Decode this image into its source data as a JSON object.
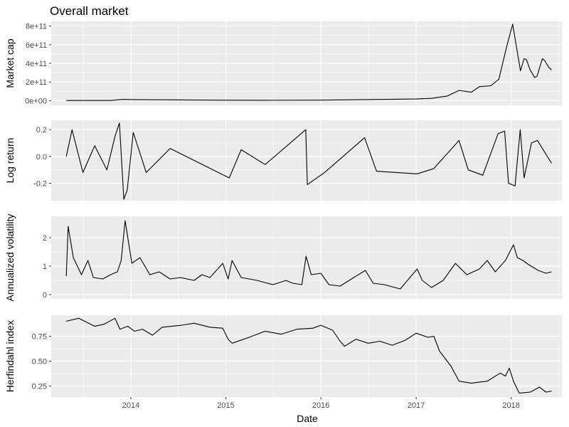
{
  "chart_data": {
    "type": "line",
    "title": "Overall market",
    "xlabel": "Date",
    "x_ticks": [
      "2014",
      "2015",
      "2016",
      "2017",
      "2018"
    ],
    "x_range": [
      "2013-03-01",
      "2018-07-15"
    ],
    "grid": true,
    "panels": [
      {
        "ylabel": "Market cap",
        "ylim": [
          -50000000000.0,
          850000000000.0
        ],
        "y_ticks": [
          0,
          200000000000.0,
          400000000000.0,
          600000000000.0,
          800000000000.0
        ],
        "y_tick_labels": [
          "0e+00",
          "2e+11",
          "4e+11",
          "6e+11",
          "8e+11"
        ],
        "series": {
          "x": [
            "2013-04-28",
            "2013-08-01",
            "2013-10-15",
            "2013-12-01",
            "2014-02-01",
            "2014-06-01",
            "2015-01-01",
            "2015-06-01",
            "2016-01-01",
            "2016-06-01",
            "2017-01-01",
            "2017-03-01",
            "2017-05-01",
            "2017-06-15",
            "2017-08-01",
            "2017-09-01",
            "2017-10-15",
            "2017-11-15",
            "2017-12-15",
            "2018-01-07",
            "2018-01-20",
            "2018-02-06",
            "2018-02-20",
            "2018-03-01",
            "2018-03-15",
            "2018-04-01",
            "2018-04-10",
            "2018-05-01",
            "2018-05-10",
            "2018-05-25",
            "2018-06-05"
          ],
          "y": [
            1600000000.0,
            1500000000.0,
            2000000000.0,
            13000000000.0,
            10000000000.0,
            9000000000.0,
            5000000000.0,
            4000000000.0,
            6000000000.0,
            10000000000.0,
            18000000000.0,
            25000000000.0,
            50000000000.0,
            110000000000.0,
            90000000000.0,
            150000000000.0,
            160000000000.0,
            230000000000.0,
            580000000000.0,
            820000000000.0,
            600000000000.0,
            320000000000.0,
            450000000000.0,
            440000000000.0,
            330000000000.0,
            250000000000.0,
            260000000000.0,
            450000000000.0,
            430000000000.0,
            360000000000.0,
            330000000000.0
          ]
        }
      },
      {
        "ylabel": "Log return",
        "ylim": [
          -0.33,
          0.27
        ],
        "y_ticks": [
          -0.2,
          0.0,
          0.2
        ],
        "y_tick_labels": [
          "-0.2",
          "0.0",
          "0.2"
        ],
        "series": {
          "x": [
            "2013-04-28",
            "2013-05-20",
            "2013-07-01",
            "2013-08-15",
            "2013-10-01",
            "2013-11-01",
            "2013-11-18",
            "2013-12-05",
            "2013-12-18",
            "2014-01-10",
            "2014-03-01",
            "2014-06-01",
            "2015-01-14",
            "2015-03-01",
            "2015-06-01",
            "2015-11-04",
            "2015-11-10",
            "2016-01-15",
            "2016-06-17",
            "2016-08-02",
            "2017-01-05",
            "2017-03-10",
            "2017-06-15",
            "2017-07-20",
            "2017-09-14",
            "2017-11-12",
            "2017-12-07",
            "2017-12-22",
            "2018-01-16",
            "2018-02-05",
            "2018-02-20",
            "2018-03-20",
            "2018-04-12",
            "2018-06-05"
          ],
          "y": [
            0.0,
            0.2,
            -0.12,
            0.08,
            -0.1,
            0.15,
            0.25,
            -0.32,
            -0.25,
            0.18,
            -0.12,
            0.06,
            -0.16,
            0.05,
            -0.06,
            0.2,
            -0.21,
            -0.12,
            0.14,
            -0.11,
            -0.13,
            -0.09,
            0.12,
            -0.1,
            -0.14,
            0.17,
            0.19,
            -0.2,
            -0.22,
            0.2,
            -0.16,
            0.1,
            0.12,
            -0.05
          ]
        }
      },
      {
        "ylabel": "Annualized volatility",
        "ylim": [
          -0.15,
          2.75
        ],
        "y_ticks": [
          0,
          1,
          2
        ],
        "y_tick_labels": [
          "0",
          "1",
          "2"
        ],
        "series": {
          "x": [
            "2013-04-28",
            "2013-05-05",
            "2013-05-25",
            "2013-06-25",
            "2013-07-20",
            "2013-08-10",
            "2013-09-15",
            "2013-10-15",
            "2013-11-10",
            "2013-11-25",
            "2013-12-10",
            "2014-01-05",
            "2014-02-05",
            "2014-03-15",
            "2014-04-20",
            "2014-06-01",
            "2014-07-10",
            "2014-09-01",
            "2014-10-01",
            "2014-11-01",
            "2014-12-20",
            "2015-01-10",
            "2015-01-25",
            "2015-03-01",
            "2015-05-01",
            "2015-07-01",
            "2015-08-20",
            "2015-09-15",
            "2015-10-20",
            "2015-11-05",
            "2015-11-25",
            "2016-01-01",
            "2016-02-01",
            "2016-03-15",
            "2016-05-15",
            "2016-06-20",
            "2016-07-20",
            "2016-09-01",
            "2016-11-01",
            "2017-01-05",
            "2017-01-25",
            "2017-03-01",
            "2017-04-15",
            "2017-06-01",
            "2017-07-15",
            "2017-09-01",
            "2017-10-01",
            "2017-11-01",
            "2017-12-10",
            "2018-01-10",
            "2018-01-25",
            "2018-02-15",
            "2018-03-10",
            "2018-04-15",
            "2018-05-15",
            "2018-06-05"
          ],
          "y": [
            0.65,
            2.4,
            1.3,
            0.7,
            1.2,
            0.6,
            0.55,
            0.7,
            0.8,
            1.2,
            2.6,
            1.1,
            1.3,
            0.7,
            0.8,
            0.55,
            0.6,
            0.5,
            0.7,
            0.6,
            1.1,
            0.55,
            1.2,
            0.6,
            0.5,
            0.35,
            0.5,
            0.4,
            0.35,
            1.35,
            0.7,
            0.75,
            0.35,
            0.3,
            0.65,
            0.85,
            0.4,
            0.35,
            0.2,
            0.9,
            0.5,
            0.25,
            0.5,
            1.1,
            0.7,
            0.9,
            1.2,
            0.8,
            1.2,
            1.75,
            1.3,
            1.2,
            1.05,
            0.85,
            0.75,
            0.8
          ]
        }
      },
      {
        "ylabel": "Herfindahl index",
        "ylim": [
          0.14,
          0.96
        ],
        "y_ticks": [
          0.25,
          0.5,
          0.75
        ],
        "y_tick_labels": [
          "0.25",
          "0.50",
          "0.75"
        ],
        "series": {
          "x": [
            "2013-04-28",
            "2013-06-15",
            "2013-08-15",
            "2013-09-20",
            "2013-11-01",
            "2013-11-20",
            "2013-12-20",
            "2014-01-15",
            "2014-02-15",
            "2014-03-25",
            "2014-05-01",
            "2014-07-15",
            "2014-09-01",
            "2014-11-01",
            "2014-12-20",
            "2015-01-10",
            "2015-01-25",
            "2015-04-01",
            "2015-06-01",
            "2015-08-01",
            "2015-10-01",
            "2015-12-01",
            "2016-01-01",
            "2016-02-15",
            "2016-03-15",
            "2016-04-01",
            "2016-05-15",
            "2016-07-01",
            "2016-08-15",
            "2016-10-01",
            "2016-11-20",
            "2017-01-01",
            "2017-02-15",
            "2017-03-10",
            "2017-04-01",
            "2017-05-15",
            "2017-06-15",
            "2017-08-01",
            "2017-10-01",
            "2017-11-20",
            "2017-12-10",
            "2017-12-25",
            "2018-01-10",
            "2018-02-01",
            "2018-03-15",
            "2018-04-20",
            "2018-05-15",
            "2018-06-05"
          ],
          "y": [
            0.9,
            0.93,
            0.85,
            0.87,
            0.93,
            0.82,
            0.85,
            0.8,
            0.82,
            0.76,
            0.84,
            0.86,
            0.88,
            0.84,
            0.83,
            0.72,
            0.68,
            0.74,
            0.8,
            0.77,
            0.82,
            0.83,
            0.86,
            0.81,
            0.7,
            0.65,
            0.72,
            0.68,
            0.7,
            0.66,
            0.71,
            0.78,
            0.74,
            0.75,
            0.6,
            0.45,
            0.3,
            0.28,
            0.3,
            0.38,
            0.35,
            0.43,
            0.3,
            0.18,
            0.19,
            0.24,
            0.19,
            0.2
          ]
        }
      }
    ]
  }
}
